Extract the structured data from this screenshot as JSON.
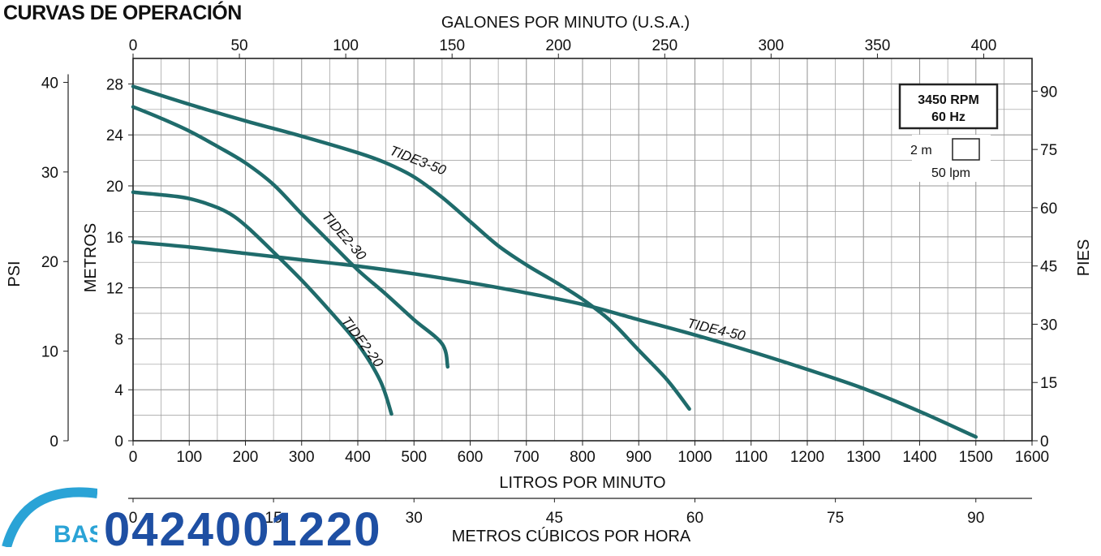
{
  "title": "CURVAS DE OPERACIÓN",
  "phone_partial": "0424001220",
  "logo_text": "BAS Y",
  "colors": {
    "curve": "#1f6b6b",
    "grid": "#9a9a9a",
    "axis": "#222222",
    "logo": "#2aa3d6",
    "phone": "#1e4fa3"
  },
  "chart_data": {
    "type": "line",
    "x": {
      "label": "LITROS POR MINUTO",
      "range": [
        0,
        1600
      ],
      "ticks": [
        "0",
        "100",
        "200",
        "300",
        "400",
        "500",
        "600",
        "700",
        "800",
        "900",
        "1000",
        "1100",
        "1200",
        "1300",
        "1400",
        "1500",
        "1600"
      ]
    },
    "x_top": {
      "label": "GALONES POR MINUTO (U.S.A.)",
      "ticks": [
        {
          "label": "0",
          "value": 0
        },
        {
          "label": "50",
          "value": 50
        },
        {
          "label": "100",
          "value": 100
        },
        {
          "label": "150",
          "value": 150
        },
        {
          "label": "200",
          "value": 200
        },
        {
          "label": "250",
          "value": 250
        },
        {
          "label": "300",
          "value": 300
        },
        {
          "label": "350",
          "value": 350
        },
        {
          "label": "400",
          "value": 400
        }
      ]
    },
    "x_bottom2": {
      "label": "METROS CÚBICOS POR HORA",
      "ticks": [
        {
          "label": "0",
          "value": 0
        },
        {
          "label": "15",
          "value": 15
        },
        {
          "label": "30",
          "value": 30
        },
        {
          "label": "45",
          "value": 45
        },
        {
          "label": "60",
          "value": 60
        },
        {
          "label": "75",
          "value": 75
        },
        {
          "label": "90",
          "value": 90
        }
      ]
    },
    "y": {
      "label": "METROS",
      "range": [
        0,
        30
      ],
      "ticks": [
        "0",
        "4",
        "8",
        "12",
        "16",
        "20",
        "24",
        "28"
      ]
    },
    "y_psi": {
      "label": "PSI",
      "ticks": [
        {
          "label": "0",
          "value": 0
        },
        {
          "label": "10",
          "value": 10
        },
        {
          "label": "20",
          "value": 20
        },
        {
          "label": "30",
          "value": 30
        },
        {
          "label": "40",
          "value": 40
        }
      ]
    },
    "y_pies": {
      "label": "PIES",
      "ticks": [
        {
          "label": "0",
          "value": 0
        },
        {
          "label": "15",
          "value": 15
        },
        {
          "label": "30",
          "value": 30
        },
        {
          "label": "45",
          "value": 45
        },
        {
          "label": "60",
          "value": 60
        },
        {
          "label": "75",
          "value": 75
        },
        {
          "label": "90",
          "value": 90
        }
      ]
    },
    "grid": true,
    "legend_box": {
      "line1": "3450 RPM",
      "line2": "60 Hz",
      "scale_h": "2 m",
      "scale_w": "50 lpm"
    },
    "series": [
      {
        "name": "TIDE3-50",
        "points": [
          [
            0,
            27.8
          ],
          [
            100,
            26.4
          ],
          [
            200,
            25.1
          ],
          [
            300,
            23.9
          ],
          [
            400,
            22.6
          ],
          [
            450,
            21.8
          ],
          [
            500,
            20.7
          ],
          [
            550,
            19.1
          ],
          [
            600,
            17.2
          ],
          [
            650,
            15.3
          ],
          [
            700,
            13.8
          ],
          [
            750,
            12.5
          ],
          [
            800,
            11.1
          ],
          [
            850,
            9.4
          ],
          [
            900,
            7.1
          ],
          [
            950,
            4.8
          ],
          [
            990,
            2.5
          ]
        ]
      },
      {
        "name": "TIDE2-30",
        "points": [
          [
            0,
            26.2
          ],
          [
            50,
            25.3
          ],
          [
            100,
            24.3
          ],
          [
            150,
            23.1
          ],
          [
            200,
            21.8
          ],
          [
            250,
            20.1
          ],
          [
            300,
            17.8
          ],
          [
            350,
            15.6
          ],
          [
            400,
            13.4
          ],
          [
            450,
            11.5
          ],
          [
            500,
            9.5
          ],
          [
            550,
            7.6
          ],
          [
            560,
            5.8
          ]
        ]
      },
      {
        "name": "TIDE2-20",
        "points": [
          [
            0,
            19.5
          ],
          [
            50,
            19.3
          ],
          [
            100,
            19.0
          ],
          [
            150,
            18.3
          ],
          [
            180,
            17.6
          ],
          [
            210,
            16.5
          ],
          [
            250,
            14.8
          ],
          [
            300,
            12.6
          ],
          [
            350,
            10.2
          ],
          [
            400,
            7.6
          ],
          [
            440,
            4.7
          ],
          [
            460,
            2.1
          ]
        ]
      },
      {
        "name": "TIDE4-50",
        "points": [
          [
            0,
            15.6
          ],
          [
            100,
            15.2
          ],
          [
            200,
            14.7
          ],
          [
            300,
            14.2
          ],
          [
            400,
            13.7
          ],
          [
            500,
            13.1
          ],
          [
            600,
            12.4
          ],
          [
            700,
            11.6
          ],
          [
            800,
            10.7
          ],
          [
            900,
            9.5
          ],
          [
            1000,
            8.3
          ],
          [
            1100,
            7.0
          ],
          [
            1200,
            5.6
          ],
          [
            1300,
            4.1
          ],
          [
            1400,
            2.3
          ],
          [
            1500,
            0.3
          ]
        ]
      }
    ],
    "curve_labels": [
      {
        "series": "TIDE3-50",
        "text": "TIDE3-50",
        "at": [
          455,
          22.5
        ],
        "angle": 21
      },
      {
        "series": "TIDE2-30",
        "text": "TIDE2-30",
        "at": [
          335,
          17.6
        ],
        "angle": 49
      },
      {
        "series": "TIDE2-20",
        "text": "TIDE2-20",
        "at": [
          370,
          9.4
        ],
        "angle": 53
      },
      {
        "series": "TIDE4-50",
        "text": "TIDE4-50",
        "at": [
          985,
          8.9
        ],
        "angle": 13
      }
    ]
  }
}
